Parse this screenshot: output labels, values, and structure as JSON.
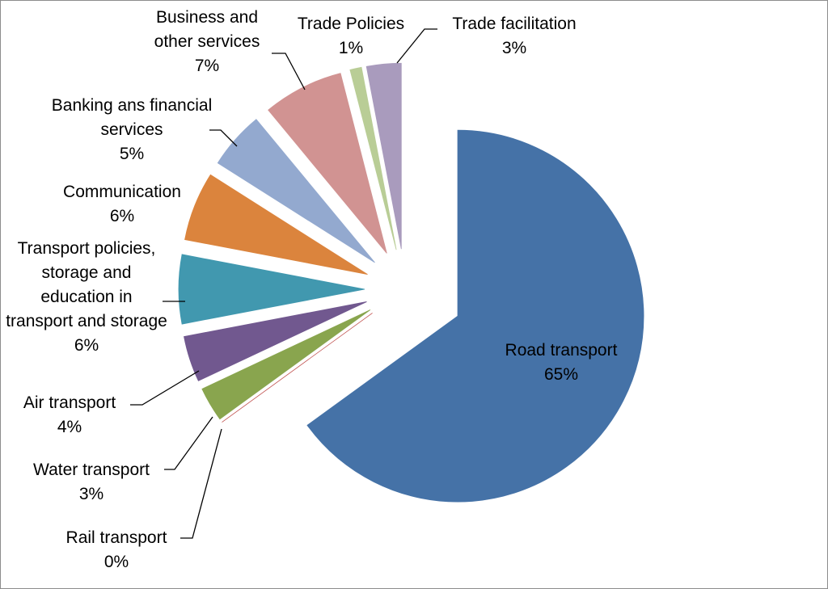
{
  "chart_data": {
    "type": "pie",
    "categories": [
      "Road transport",
      "Rail transport",
      "Water transport",
      "Air transport",
      "Transport policies, storage and education in transport and storage",
      "Communication",
      "Banking ans financial services",
      "Business and other services",
      "Trade Policies",
      "Trade facilitation"
    ],
    "values": [
      65,
      0,
      3,
      4,
      6,
      6,
      5,
      7,
      1,
      3
    ],
    "value_labels": [
      "65%",
      "0%",
      "3%",
      "4%",
      "6%",
      "6%",
      "5%",
      "7%",
      "1%",
      "3%"
    ],
    "colors": [
      "#4572a7",
      "#c0504d",
      "#89a54e",
      "#71588f",
      "#4198af",
      "#db843d",
      "#93a9cf",
      "#d19392",
      "#b9cd96",
      "#a99bbd"
    ]
  }
}
